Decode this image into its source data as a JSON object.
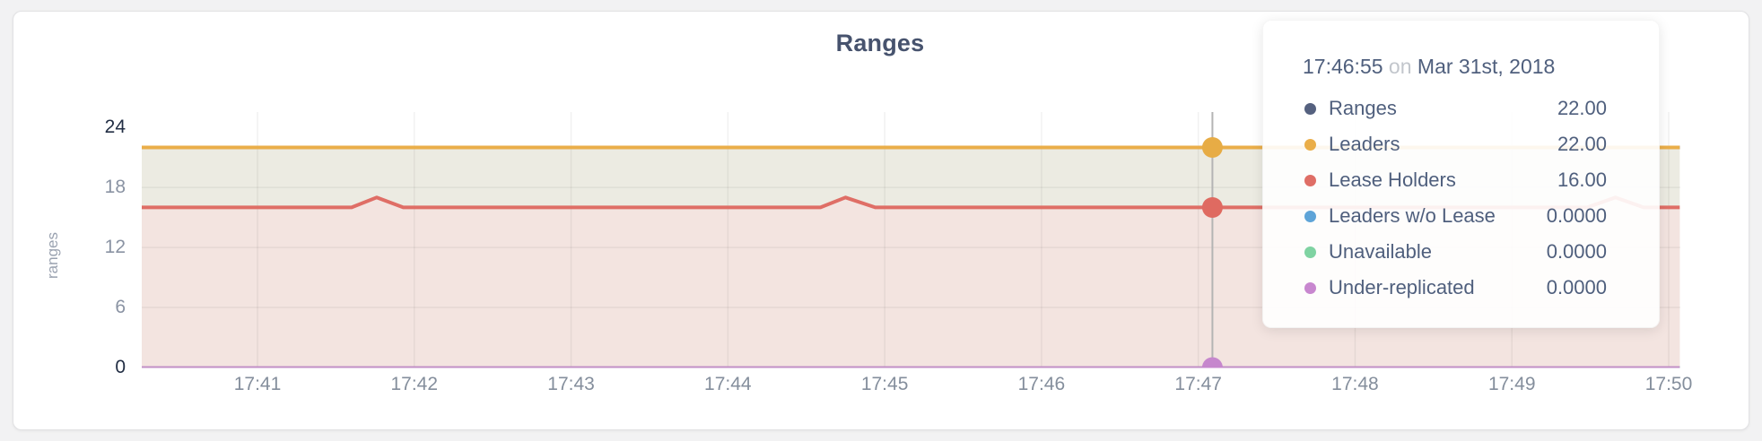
{
  "card_title": "Ranges",
  "chart_data": {
    "type": "area",
    "title": "Ranges",
    "ylabel": "ranges",
    "xlabel": "",
    "ylim": [
      0,
      24
    ],
    "y_ticks": [
      0,
      6,
      12,
      18,
      24
    ],
    "y_grid_values": [
      6,
      12,
      18
    ],
    "x_unit": "minutes after 17:00",
    "x_window_minutes": [
      40.26,
      50.07
    ],
    "x_ticks": [
      {
        "t": 41,
        "label": "17:41"
      },
      {
        "t": 42,
        "label": "17:42"
      },
      {
        "t": 43,
        "label": "17:43"
      },
      {
        "t": 44,
        "label": "17:44"
      },
      {
        "t": 45,
        "label": "17:45"
      },
      {
        "t": 46,
        "label": "17:46"
      },
      {
        "t": 47,
        "label": "17:47"
      },
      {
        "t": 48,
        "label": "17:48"
      },
      {
        "t": 49,
        "label": "17:49"
      },
      {
        "t": 50,
        "label": "17:50"
      }
    ],
    "series": [
      {
        "name": "Ranges",
        "color": "#55617f",
        "fill": "none",
        "width": 4,
        "points": [
          [
            40.26,
            22
          ],
          [
            50.07,
            22
          ]
        ]
      },
      {
        "name": "Leaders",
        "color": "#eaae49",
        "fill": "#ecebe2",
        "width": 4,
        "points": [
          [
            40.26,
            22
          ],
          [
            50.07,
            22
          ]
        ]
      },
      {
        "name": "Lease Holders",
        "color": "#df6e66",
        "fill": "#f3e4e0",
        "width": 4,
        "points": [
          [
            40.26,
            16
          ],
          [
            41.6,
            16
          ],
          [
            41.76,
            17
          ],
          [
            41.93,
            16
          ],
          [
            44.59,
            16
          ],
          [
            44.75,
            17
          ],
          [
            44.94,
            16
          ],
          [
            49.48,
            16
          ],
          [
            49.66,
            17
          ],
          [
            49.84,
            16
          ],
          [
            50.07,
            16
          ]
        ]
      },
      {
        "name": "Leaders w/o Lease",
        "color": "#5ea4d8",
        "fill": "none",
        "width": 3,
        "points": [
          [
            40.26,
            0
          ],
          [
            50.07,
            0
          ]
        ]
      },
      {
        "name": "Unavailable",
        "color": "#7fd3a2",
        "fill": "none",
        "width": 3,
        "points": [
          [
            40.26,
            0
          ],
          [
            50.07,
            0
          ]
        ]
      },
      {
        "name": "Under-replicated",
        "color": "#c18fc6",
        "fill": "none",
        "width": 3,
        "points": [
          [
            40.26,
            0
          ],
          [
            50.07,
            0
          ]
        ]
      }
    ],
    "legend_position": "tooltip-only",
    "grid": true
  },
  "hover": {
    "time_label": "17:46:55",
    "on_word": "on",
    "date_label": "Mar 31st, 2018",
    "guideline_t": 47.09,
    "guideline_color": "#b4b4b4",
    "markers": [
      {
        "series": "Leaders",
        "value": 22,
        "color": "#e7ac45"
      },
      {
        "series": "Lease Holders",
        "value": 16,
        "color": "#df6a61"
      },
      {
        "series": "Under-replicated",
        "value": 0,
        "color": "#c687cd"
      }
    ],
    "rows": [
      {
        "label": "Ranges",
        "value": "22.00",
        "color": "#55617f"
      },
      {
        "label": "Leaders",
        "value": "22.00",
        "color": "#eaae49"
      },
      {
        "label": "Lease Holders",
        "value": "16.00",
        "color": "#df6e66"
      },
      {
        "label": "Leaders w/o Lease",
        "value": "0.0000",
        "color": "#5ea4d8"
      },
      {
        "label": "Unavailable",
        "value": "0.0000",
        "color": "#7fd3a2"
      },
      {
        "label": "Under-replicated",
        "value": "0.0000",
        "color": "#c887cf"
      }
    ]
  },
  "colors": {
    "accent_slate": "#47536e",
    "tick_dark": "#222e44",
    "tick_gray": "#8a93a3"
  }
}
